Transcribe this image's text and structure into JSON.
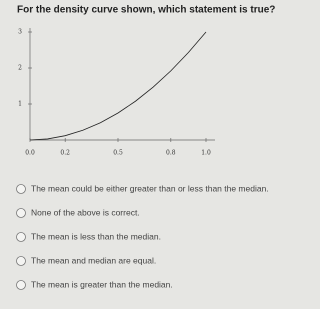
{
  "question": "For the density curve shown, which statement is true?",
  "chart_data": {
    "type": "line",
    "x": [
      0,
      0.1,
      0.2,
      0.3,
      0.4,
      0.5,
      0.6,
      0.7,
      0.8,
      0.9,
      1.0
    ],
    "series": [
      {
        "color": "#222222",
        "values": [
          0,
          0.03,
          0.12,
          0.27,
          0.48,
          0.75,
          1.08,
          1.47,
          1.92,
          2.43,
          3
        ]
      }
    ],
    "xlim": [
      0,
      1
    ],
    "ylim": [
      0,
      3
    ],
    "xticks": [
      {
        "value": 0,
        "label": "0.0"
      },
      {
        "value": 0.2,
        "label": "0.2"
      },
      {
        "value": 0.5,
        "label": "0.5"
      },
      {
        "value": 0.8,
        "label": "0.8"
      },
      {
        "value": 1,
        "label": "1.0"
      }
    ],
    "yticks": [
      1,
      2,
      3
    ]
  },
  "options": [
    "The mean could be either greater than or less than the median.",
    "None of the above is correct.",
    "The mean is less than the median.",
    "The mean and median are equal.",
    "The mean is greater than the median."
  ]
}
